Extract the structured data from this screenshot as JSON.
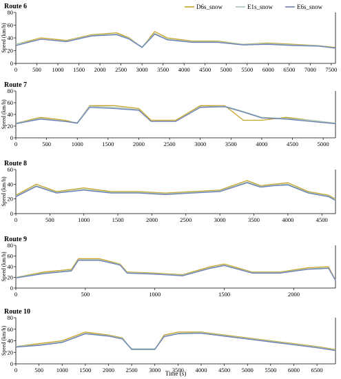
{
  "legend": {
    "placement": "top-right"
  },
  "chart_data": [
    {
      "type": "line",
      "title": "Route 6",
      "xlabel": "",
      "ylabel": "Speed (km/h)",
      "xlim": [
        0,
        7600
      ],
      "ylim": [
        0,
        80
      ],
      "xticks": [
        0,
        500,
        1000,
        1500,
        2000,
        2500,
        3000,
        3500,
        4000,
        4500,
        5000,
        5500,
        6000,
        6500,
        7000,
        7500
      ],
      "yticks": [
        0,
        20,
        40,
        60,
        80
      ],
      "series": [
        {
          "name": "D6s_snow",
          "color": "#c9a227",
          "x": [
            0,
            600,
            1200,
            1800,
            2400,
            2700,
            3000,
            3300,
            3600,
            4200,
            4800,
            5400,
            6000,
            6600,
            7200,
            7600
          ],
          "y": [
            30,
            40,
            36,
            45,
            48,
            40,
            25,
            50,
            40,
            35,
            35,
            30,
            32,
            30,
            28,
            25
          ]
        },
        {
          "name": "E1s_snow",
          "color": "#a9c7b5",
          "x": [
            0,
            600,
            1200,
            1800,
            2400,
            2700,
            3000,
            3300,
            3600,
            4200,
            4800,
            5400,
            6000,
            6600,
            7200,
            7600
          ],
          "y": [
            30,
            38,
            35,
            44,
            46,
            39,
            26,
            47,
            38,
            34,
            34,
            30,
            31,
            29,
            28,
            24
          ]
        },
        {
          "name": "E6s_snow",
          "color": "#6b7fb5",
          "x": [
            0,
            600,
            1200,
            1800,
            2400,
            2700,
            3000,
            3300,
            3600,
            4200,
            4800,
            5400,
            6000,
            6600,
            7200,
            7600
          ],
          "y": [
            28,
            38,
            34,
            43,
            45,
            38,
            25,
            46,
            37,
            33,
            33,
            29,
            30,
            28,
            27,
            24
          ]
        }
      ]
    },
    {
      "type": "line",
      "title": "Route 7",
      "xlabel": "",
      "ylabel": "Speed (km/h)",
      "xlim": [
        0,
        5200
      ],
      "ylim": [
        0,
        80
      ],
      "xticks": [
        0,
        500,
        1000,
        1500,
        2000,
        2500,
        3000,
        3500,
        4000,
        4500,
        5000
      ],
      "yticks": [
        0,
        20,
        40,
        60,
        80
      ],
      "series": [
        {
          "name": "D6s_snow",
          "color": "#c9a227",
          "x": [
            0,
            400,
            800,
            1000,
            1200,
            1600,
            2000,
            2200,
            2600,
            3000,
            3400,
            3700,
            4000,
            4400,
            4800,
            5200
          ],
          "y": [
            25,
            35,
            30,
            25,
            55,
            55,
            50,
            30,
            30,
            55,
            55,
            30,
            30,
            35,
            30,
            25
          ]
        },
        {
          "name": "E1s_snow",
          "color": "#a9c7b5",
          "x": [
            0,
            400,
            800,
            1000,
            1200,
            1600,
            2000,
            2200,
            2600,
            3000,
            3400,
            3700,
            4000,
            4400,
            4800,
            5200
          ],
          "y": [
            25,
            33,
            28,
            26,
            54,
            52,
            48,
            28,
            28,
            53,
            54,
            45,
            35,
            33,
            30,
            25
          ]
        },
        {
          "name": "E6s_snow",
          "color": "#6b7fb5",
          "x": [
            0,
            400,
            800,
            1000,
            1200,
            1600,
            2000,
            2200,
            2600,
            3000,
            3400,
            3700,
            4000,
            4400,
            4800,
            5200
          ],
          "y": [
            24,
            32,
            28,
            25,
            52,
            50,
            47,
            28,
            28,
            52,
            53,
            44,
            34,
            32,
            28,
            24
          ]
        }
      ]
    },
    {
      "type": "line",
      "title": "Route 8",
      "xlabel": "",
      "ylabel": "Speed (km/h)",
      "xlim": [
        0,
        4700
      ],
      "ylim": [
        0,
        60
      ],
      "xticks": [
        0,
        500,
        1000,
        1500,
        2000,
        2500,
        3000,
        3500,
        4000,
        4500
      ],
      "yticks": [
        0,
        20,
        40,
        60
      ],
      "series": [
        {
          "name": "D6s_snow",
          "color": "#c9a227",
          "x": [
            0,
            300,
            600,
            1000,
            1400,
            1800,
            2200,
            2600,
            3000,
            3400,
            3600,
            3800,
            4000,
            4300,
            4600,
            4700
          ],
          "y": [
            25,
            40,
            30,
            35,
            30,
            30,
            28,
            30,
            32,
            45,
            38,
            40,
            42,
            30,
            25,
            20
          ]
        },
        {
          "name": "E1s_snow",
          "color": "#a9c7b5",
          "x": [
            0,
            300,
            600,
            1000,
            1400,
            1800,
            2200,
            2600,
            3000,
            3400,
            3600,
            3800,
            4000,
            4300,
            4600,
            4700
          ],
          "y": [
            24,
            38,
            29,
            33,
            29,
            29,
            27,
            29,
            31,
            43,
            37,
            39,
            40,
            29,
            24,
            19
          ]
        },
        {
          "name": "E6s_snow",
          "color": "#6b7fb5",
          "x": [
            0,
            300,
            600,
            1000,
            1400,
            1800,
            2200,
            2600,
            3000,
            3400,
            3600,
            3800,
            4000,
            4300,
            4600,
            4700
          ],
          "y": [
            23,
            37,
            28,
            32,
            28,
            28,
            26,
            28,
            30,
            42,
            36,
            38,
            39,
            28,
            23,
            18
          ]
        }
      ]
    },
    {
      "type": "line",
      "title": "Route 9",
      "xlabel": "",
      "ylabel": "Speed (km/h)",
      "xlim": [
        0,
        2300
      ],
      "ylim": [
        0,
        80
      ],
      "xticks": [
        0,
        500,
        1000,
        1500,
        2000
      ],
      "yticks": [
        0,
        20,
        40,
        60,
        80
      ],
      "series": [
        {
          "name": "D6s_snow",
          "color": "#c9a227",
          "x": [
            0,
            200,
            400,
            450,
            600,
            750,
            800,
            1000,
            1200,
            1400,
            1500,
            1700,
            1900,
            2100,
            2250,
            2300
          ],
          "y": [
            20,
            30,
            35,
            55,
            55,
            45,
            30,
            28,
            25,
            40,
            45,
            30,
            30,
            38,
            40,
            15
          ]
        },
        {
          "name": "E1s_snow",
          "color": "#a9c7b5",
          "x": [
            0,
            200,
            400,
            450,
            600,
            750,
            800,
            1000,
            1200,
            1400,
            1500,
            1700,
            1900,
            2100,
            2250,
            2300
          ],
          "y": [
            20,
            28,
            33,
            53,
            53,
            44,
            29,
            27,
            24,
            38,
            43,
            29,
            29,
            36,
            38,
            15
          ]
        },
        {
          "name": "E6s_snow",
          "color": "#6b7fb5",
          "x": [
            0,
            200,
            400,
            450,
            600,
            750,
            800,
            1000,
            1200,
            1400,
            1500,
            1700,
            1900,
            2100,
            2250,
            2300
          ],
          "y": [
            19,
            27,
            32,
            52,
            52,
            43,
            28,
            26,
            23,
            37,
            42,
            28,
            28,
            35,
            37,
            14
          ]
        }
      ]
    },
    {
      "type": "line",
      "title": "Route 10",
      "xlabel": "Time (s)",
      "ylabel": "Speed (km/h)",
      "xlim": [
        0,
        6900
      ],
      "ylim": [
        0,
        80
      ],
      "xticks": [
        0,
        500,
        1000,
        1500,
        2000,
        2500,
        3000,
        3500,
        4000,
        4500,
        5000,
        5500,
        6000,
        6500
      ],
      "yticks": [
        0,
        20,
        40,
        60,
        80
      ],
      "series": [
        {
          "name": "D6s_snow",
          "color": "#c9a227",
          "x": [
            0,
            500,
            1000,
            1500,
            2000,
            2300,
            2500,
            3000,
            3200,
            3500,
            4000,
            4500,
            5000,
            5500,
            6000,
            6500,
            6900
          ],
          "y": [
            30,
            35,
            40,
            55,
            50,
            45,
            25,
            25,
            50,
            55,
            55,
            50,
            45,
            40,
            35,
            30,
            25
          ]
        },
        {
          "name": "E1s_snow",
          "color": "#a9c7b5",
          "x": [
            0,
            500,
            1000,
            1500,
            2000,
            2300,
            2500,
            3000,
            3200,
            3500,
            4000,
            4500,
            5000,
            5500,
            6000,
            6500,
            6900
          ],
          "y": [
            30,
            33,
            38,
            53,
            49,
            44,
            26,
            26,
            48,
            53,
            54,
            49,
            44,
            39,
            34,
            29,
            24
          ]
        },
        {
          "name": "E6s_snow",
          "color": "#6b7fb5",
          "x": [
            0,
            500,
            1000,
            1500,
            2000,
            2300,
            2500,
            3000,
            3200,
            3500,
            4000,
            4500,
            5000,
            5500,
            6000,
            6500,
            6900
          ],
          "y": [
            29,
            32,
            37,
            52,
            48,
            43,
            25,
            25,
            47,
            52,
            53,
            48,
            43,
            38,
            33,
            28,
            23
          ]
        }
      ]
    }
  ]
}
